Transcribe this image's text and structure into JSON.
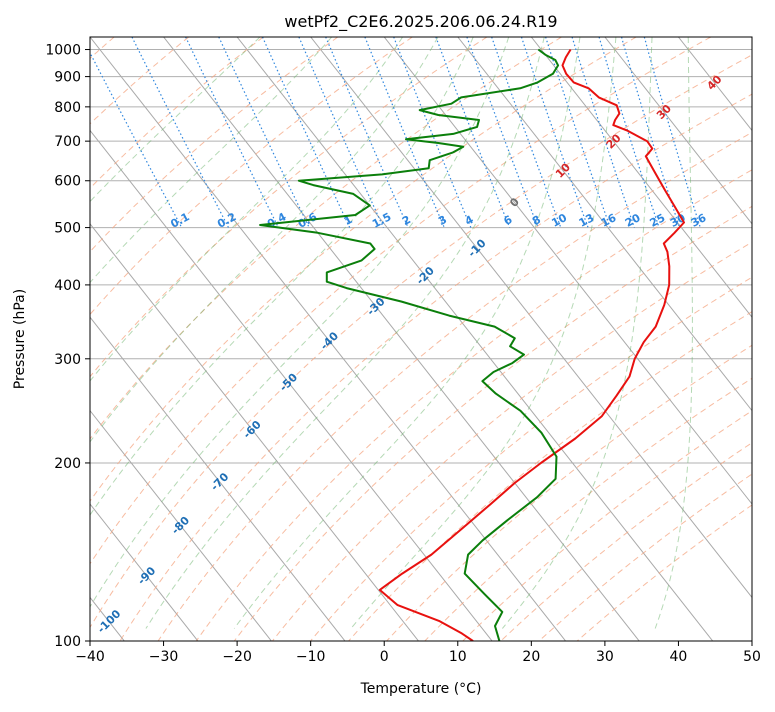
{
  "chart_data": {
    "type": "line",
    "chart_kind": "skew-T log-P diagram",
    "title": "wetPf2_C2E6.2025.206.06.24.R19",
    "xlabel": "Temperature (°C)",
    "ylabel": "Pressure (hPa)",
    "xlim": [
      -40,
      50
    ],
    "ylim": [
      1050,
      100
    ],
    "y_scale": "log",
    "skew_deg_per_log_unit": 27.5,
    "grid": true,
    "x_ticks": [
      -40,
      -30,
      -20,
      -10,
      0,
      10,
      20,
      30,
      40,
      50
    ],
    "x_tick_labels": [
      "−40",
      "−30",
      "−20",
      "−10",
      "0",
      "10",
      "20",
      "30",
      "40",
      "50"
    ],
    "y_ticks": [
      100,
      200,
      300,
      400,
      500,
      600,
      700,
      800,
      900,
      1000
    ],
    "y_tick_labels": [
      "100",
      "200",
      "300",
      "400",
      "500",
      "600",
      "700",
      "800",
      "900",
      "1000"
    ],
    "isotherm_values": [
      -130,
      -120,
      -110,
      -100,
      -90,
      -80,
      -70,
      -60,
      -50,
      -40,
      -30,
      -20,
      -10,
      0,
      10,
      20,
      30,
      40,
      50
    ],
    "dry_adiabat_thetas_c": [
      -40,
      -30,
      -20,
      -10,
      0,
      10,
      20,
      30,
      40,
      50,
      60,
      70,
      80,
      90,
      100,
      110,
      120,
      130,
      140,
      150,
      160,
      170,
      180
    ],
    "moist_adiabat_thetaw_c": [
      -20,
      -10,
      0,
      5,
      10,
      15,
      20,
      25,
      30,
      35,
      40
    ],
    "mixing_ratio_values": [
      0.1,
      0.2,
      0.4,
      0.6,
      1,
      1.5,
      2,
      3,
      4,
      6,
      8,
      10,
      13,
      16,
      20,
      25,
      30,
      36
    ],
    "mixing_ratio_labels": [
      "0.1",
      "0.2",
      "0.4",
      "0.6",
      "1",
      "1.5",
      "2",
      "3",
      "4",
      "6",
      "8",
      "10",
      "13",
      "16",
      "20",
      "25",
      "30",
      "36"
    ],
    "blue_isotherm_labels": [
      {
        "text": "-100",
        "p": 108
      },
      {
        "text": "-90",
        "p": 129
      },
      {
        "text": "-80",
        "p": 157
      },
      {
        "text": "-70",
        "p": 186
      },
      {
        "text": "-60",
        "p": 228
      },
      {
        "text": "-50",
        "p": 274
      },
      {
        "text": "-40",
        "p": 322
      },
      {
        "text": "-30",
        "p": 368
      },
      {
        "text": "-20",
        "p": 415
      },
      {
        "text": "-10",
        "p": 462
      }
    ],
    "gray_isotherm_label": {
      "text": "0",
      "p": 552
    },
    "red_isotherm_labels": [
      {
        "text": "10",
        "p": 625
      },
      {
        "text": "20",
        "p": 700
      },
      {
        "text": "30",
        "p": 785
      },
      {
        "text": "40",
        "p": 880
      }
    ],
    "series": [
      {
        "name": "temperature",
        "color": "#e8110f",
        "points": [
          [
            1000,
            24
          ],
          [
            970,
            22.5
          ],
          [
            940,
            21.2
          ],
          [
            910,
            20.8
          ],
          [
            880,
            20.9
          ],
          [
            860,
            22.3
          ],
          [
            830,
            22.7
          ],
          [
            805,
            24.3
          ],
          [
            780,
            23.8
          ],
          [
            760,
            22.5
          ],
          [
            745,
            21.7
          ],
          [
            730,
            23.0
          ],
          [
            700,
            24.6
          ],
          [
            680,
            24.5
          ],
          [
            660,
            22.8
          ],
          [
            620,
            22.3
          ],
          [
            580,
            21.8
          ],
          [
            540,
            21.3
          ],
          [
            510,
            20.9
          ],
          [
            490,
            18.5
          ],
          [
            470,
            15.9
          ],
          [
            455,
            15.5
          ],
          [
            430,
            14.2
          ],
          [
            400,
            12.2
          ],
          [
            370,
            9.4
          ],
          [
            340,
            5.9
          ],
          [
            320,
            2.6
          ],
          [
            300,
            -0.4
          ],
          [
            280,
            -3.0
          ],
          [
            260,
            -6.8
          ],
          [
            240,
            -11.0
          ],
          [
            220,
            -17.0
          ],
          [
            200,
            -24.3
          ],
          [
            185,
            -30.0
          ],
          [
            170,
            -35.7
          ],
          [
            155,
            -42.0
          ],
          [
            140,
            -49.0
          ],
          [
            130,
            -55.0
          ],
          [
            122,
            -59.8
          ],
          [
            115,
            -59.0
          ],
          [
            108,
            -55.0
          ],
          [
            103,
            -53.3
          ],
          [
            100,
            -52.6
          ]
        ]
      },
      {
        "name": "dewpoint",
        "color": "#0b7f0b",
        "points": [
          [
            1000,
            19.6
          ],
          [
            980,
            20.0
          ],
          [
            960,
            20.8
          ],
          [
            940,
            20.6
          ],
          [
            910,
            19.0
          ],
          [
            880,
            16.0
          ],
          [
            860,
            13.0
          ],
          [
            830,
            4.0
          ],
          [
            810,
            2.0
          ],
          [
            790,
            -3.0
          ],
          [
            775,
            -1.0
          ],
          [
            760,
            4.0
          ],
          [
            740,
            3.0
          ],
          [
            720,
            -1.0
          ],
          [
            705,
            -8.0
          ],
          [
            695,
            -4.0
          ],
          [
            685,
            -1.0
          ],
          [
            670,
            -3.0
          ],
          [
            650,
            -7.0
          ],
          [
            630,
            -8.0
          ],
          [
            615,
            -15.0
          ],
          [
            600,
            -27.0
          ],
          [
            590,
            -25.5
          ],
          [
            570,
            -21.0
          ],
          [
            545,
            -20.0
          ],
          [
            525,
            -23.0
          ],
          [
            505,
            -37.0
          ],
          [
            490,
            -30.0
          ],
          [
            470,
            -24.0
          ],
          [
            460,
            -24.0
          ],
          [
            440,
            -27.0
          ],
          [
            420,
            -33.0
          ],
          [
            405,
            -34.0
          ],
          [
            395,
            -32.0
          ],
          [
            375,
            -26.0
          ],
          [
            355,
            -21.0
          ],
          [
            340,
            -16.0
          ],
          [
            325,
            -14.5
          ],
          [
            315,
            -16.0
          ],
          [
            305,
            -15.0
          ],
          [
            295,
            -17.5
          ],
          [
            285,
            -21.0
          ],
          [
            275,
            -23.5
          ],
          [
            262,
            -23.0
          ],
          [
            245,
            -21.5
          ],
          [
            225,
            -21.0
          ],
          [
            205,
            -21.5
          ],
          [
            188,
            -24.0
          ],
          [
            175,
            -28.5
          ],
          [
            160,
            -35.0
          ],
          [
            148,
            -40.5
          ],
          [
            140,
            -44.0
          ],
          [
            130,
            -46.5
          ],
          [
            120,
            -46.0
          ],
          [
            112,
            -45.5
          ],
          [
            106,
            -48.0
          ],
          [
            100,
            -49.0
          ]
        ]
      }
    ]
  }
}
